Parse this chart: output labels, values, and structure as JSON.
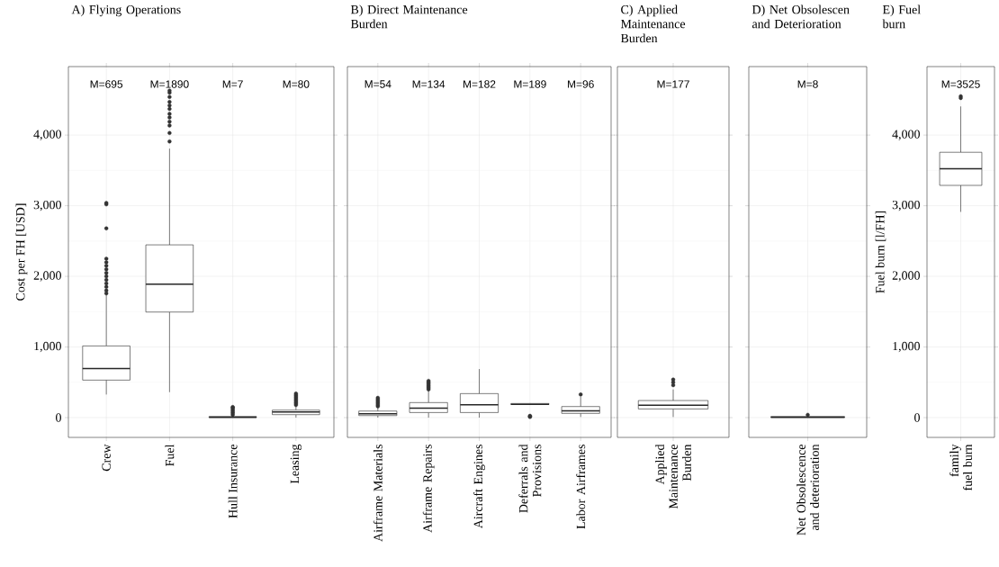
{
  "chart_data": [
    {
      "type": "box",
      "title": "A) Flying Operations",
      "ylabel": "Cost per FH [USD]",
      "categories": [
        "Crew",
        "Fuel",
        "Hull Insurance",
        "Leasing"
      ],
      "boxes": [
        {
          "low": 327,
          "q1": 531,
          "median": 695,
          "q3": 1015,
          "high": 1740,
          "outliers": [
            1760,
            1800,
            1850,
            1900,
            1950,
            2000,
            2050,
            2100,
            2150,
            2200,
            2250,
            2680,
            3020,
            3040
          ]
        },
        {
          "low": 361,
          "q1": 1495,
          "median": 1890,
          "q3": 2446,
          "high": 3809,
          "outliers": [
            3910,
            4030,
            4136,
            4190,
            4250,
            4300,
            4370,
            4420,
            4470,
            4540,
            4600,
            4630
          ]
        },
        {
          "low": 0,
          "q1": 0,
          "median": 7,
          "q3": 15,
          "high": 30,
          "outliers": [
            40,
            60,
            80,
            100,
            120,
            140,
            150
          ]
        },
        {
          "low": 0,
          "q1": 42,
          "median": 80,
          "q3": 106,
          "high": 170,
          "outliers": [
            180,
            200,
            220,
            240,
            260,
            280,
            300,
            320,
            340
          ]
        }
      ],
      "ylim": [
        -280,
        4970
      ],
      "yticks": [
        0,
        {
          "value": 1000,
          "label": "1,000"
        },
        {
          "value": 2000,
          "label": "2,000"
        },
        {
          "value": 3000,
          "label": "3,000"
        },
        {
          "value": 4000,
          "label": "4,000"
        }
      ],
      "grid": true,
      "annotations": [
        "M=695",
        "M=1890",
        "M=7",
        "M=80"
      ]
    },
    {
      "type": "box",
      "title": "B) Direct Maintenance Burden",
      "categories": [
        "Airframe Materials",
        "Airframe Repairs",
        "Aircraft Engines",
        "Deferrals and Provisions",
        "Labor Airframes"
      ],
      "boxes": [
        {
          "low": 0,
          "q1": 29,
          "median": 54,
          "q3": 93,
          "high": 144,
          "outliers": [
            160,
            180,
            200,
            220,
            240,
            260,
            280
          ]
        },
        {
          "low": 0,
          "q1": 72,
          "median": 134,
          "q3": 213,
          "high": 391,
          "outliers": [
            400,
            420,
            440,
            460,
            480,
            500,
            520
          ]
        },
        {
          "low": 0,
          "q1": 72,
          "median": 182,
          "q3": 340,
          "high": 688
        },
        {
          "low": 180,
          "q1": 185,
          "median": 189,
          "q3": 200,
          "high": 205,
          "outliers": [
            10,
            17,
            25
          ]
        },
        {
          "low": 9,
          "q1": 60,
          "median": 96,
          "q3": 157,
          "high": 300,
          "outliers": [
            327
          ]
        }
      ],
      "ylim": [
        -280,
        4970
      ],
      "yticks": [
        {
          "value": 0,
          "label": null
        },
        {
          "value": 1000,
          "label": null
        },
        {
          "value": 2000,
          "label": null
        },
        {
          "value": 3000,
          "label": null
        },
        {
          "value": 4000,
          "label": null
        }
      ],
      "grid": true,
      "tick_labels": "x",
      "annotations": [
        "M=54",
        "M=134",
        "M=182",
        "M=189",
        "M=96"
      ]
    },
    {
      "type": "box",
      "title": "C) Applied Maintenance Burden",
      "categories": [
        "Applied Maintenance Burden"
      ],
      "boxes": [
        {
          "low": 9,
          "q1": 123,
          "median": 177,
          "q3": 242,
          "high": 399,
          "outliers": [
            460,
            500,
            540
          ]
        }
      ],
      "ylim": [
        -280,
        4970
      ],
      "yticks": [
        {
          "value": 0,
          "label": null
        },
        {
          "value": 1000,
          "label": null
        },
        {
          "value": 2000,
          "label": null
        },
        {
          "value": 3000,
          "label": null
        },
        {
          "value": 4000,
          "label": null
        }
      ],
      "grid": true,
      "tick_labels": "x",
      "annotations": [
        "M=177"
      ]
    },
    {
      "type": "box",
      "title": "D) Net Obsolescen and Deterioration",
      "categories": [
        "Net Obsolescence and deterioration"
      ],
      "boxes": [
        {
          "low": 0,
          "q1": 0,
          "median": 8,
          "q3": 15,
          "high": 20,
          "outliers": [
            40
          ]
        }
      ],
      "ylim": [
        -280,
        4970
      ],
      "yticks": [
        {
          "value": 0,
          "label": null
        },
        {
          "value": 1000,
          "label": null
        },
        {
          "value": 2000,
          "label": null
        },
        {
          "value": 3000,
          "label": null
        },
        {
          "value": 4000,
          "label": null
        }
      ],
      "grid": true,
      "tick_labels": "x",
      "annotations": [
        "M=8"
      ]
    },
    {
      "type": "box",
      "title": "E) Fuel burn",
      "ylabel": "Fuel burn [l/FH]",
      "categories": [
        "family fuel burn"
      ],
      "boxes": [
        {
          "low": 2913,
          "q1": 3288,
          "median": 3525,
          "q3": 3757,
          "high": 4406,
          "outliers": [
            4525,
            4550
          ]
        }
      ],
      "ylim": [
        -280,
        4970
      ],
      "yticks": [
        0,
        {
          "value": 1000,
          "label": "1,000"
        },
        {
          "value": 2000,
          "label": "2,000"
        },
        {
          "value": 3000,
          "label": "3,000"
        },
        {
          "value": 4000,
          "label": "4,000"
        }
      ],
      "grid": true,
      "annotations": [
        "M=3525"
      ]
    }
  ]
}
